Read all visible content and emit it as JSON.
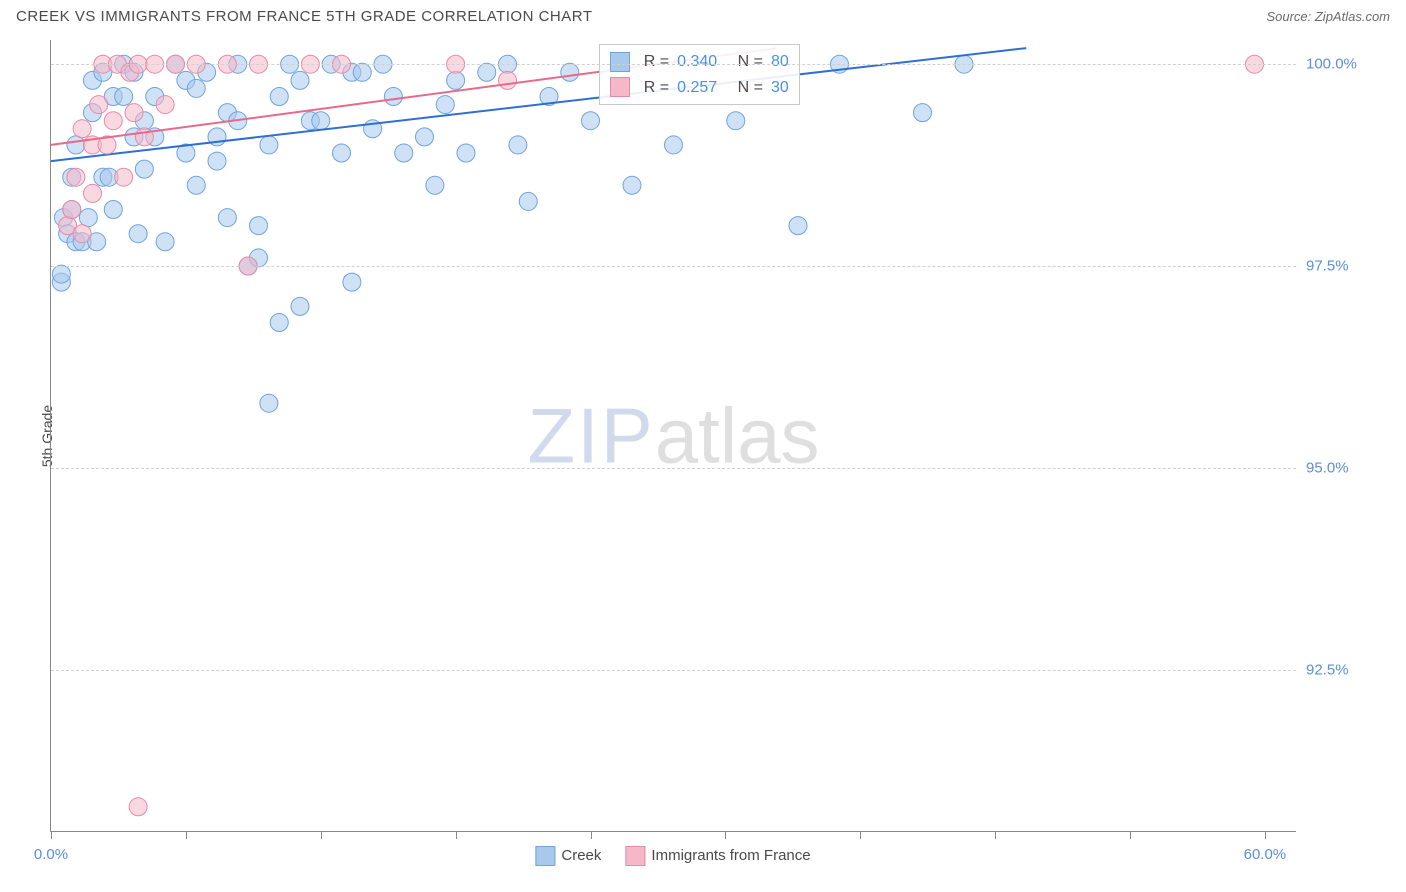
{
  "header": {
    "title": "CREEK VS IMMIGRANTS FROM FRANCE 5TH GRADE CORRELATION CHART",
    "source": "Source: ZipAtlas.com"
  },
  "watermark": {
    "zip": "ZIP",
    "atlas": "atlas"
  },
  "chart": {
    "type": "scatter",
    "ylabel": "5th Grade",
    "xlim": [
      0,
      60
    ],
    "ylim": [
      90.5,
      100.3
    ],
    "xtick_positions": [
      0,
      6.5,
      13,
      19.5,
      26,
      32.5,
      39,
      45.5,
      52,
      58.5
    ],
    "xtick_labels_shown": {
      "first": "0.0%",
      "last": "60.0%"
    },
    "ytick_positions": [
      92.5,
      95.0,
      97.5,
      100.0
    ],
    "ytick_labels": [
      "92.5%",
      "95.0%",
      "97.5%",
      "100.0%"
    ],
    "grid_color": "#d0d0d0",
    "background_color": "#ffffff",
    "series": [
      {
        "name": "Creek",
        "fill": "#a8c8ec",
        "stroke": "#6fa3dd",
        "fill_opacity": 0.55,
        "marker_radius": 9,
        "regression": {
          "x1": 0,
          "y1": 98.8,
          "x2": 47,
          "y2": 100.2,
          "color": "#2e6fd1",
          "width": 2
        },
        "stats": {
          "R": "0.340",
          "N": "80"
        },
        "points": [
          [
            0.5,
            97.3
          ],
          [
            0.5,
            97.4
          ],
          [
            0.6,
            98.1
          ],
          [
            0.8,
            97.9
          ],
          [
            1.0,
            98.2
          ],
          [
            1.0,
            98.6
          ],
          [
            1.2,
            97.8
          ],
          [
            1.2,
            99.0
          ],
          [
            1.5,
            97.8
          ],
          [
            1.8,
            98.1
          ],
          [
            2.0,
            99.4
          ],
          [
            2.0,
            99.8
          ],
          [
            2.2,
            97.8
          ],
          [
            2.5,
            98.6
          ],
          [
            2.5,
            99.9
          ],
          [
            2.8,
            98.6
          ],
          [
            3.0,
            99.6
          ],
          [
            3.0,
            98.2
          ],
          [
            3.5,
            100.0
          ],
          [
            3.5,
            99.6
          ],
          [
            4.0,
            99.1
          ],
          [
            4.0,
            99.9
          ],
          [
            4.2,
            97.9
          ],
          [
            4.5,
            99.3
          ],
          [
            4.5,
            98.7
          ],
          [
            5.0,
            99.1
          ],
          [
            5.0,
            99.6
          ],
          [
            5.5,
            97.8
          ],
          [
            6.0,
            100.0
          ],
          [
            6.5,
            99.8
          ],
          [
            6.5,
            98.9
          ],
          [
            7.0,
            99.7
          ],
          [
            7.0,
            98.5
          ],
          [
            7.5,
            99.9
          ],
          [
            8.0,
            99.1
          ],
          [
            8.0,
            98.8
          ],
          [
            8.5,
            99.4
          ],
          [
            8.5,
            98.1
          ],
          [
            9.0,
            100.0
          ],
          [
            9.0,
            99.3
          ],
          [
            9.5,
            97.5
          ],
          [
            10.0,
            97.6
          ],
          [
            10.0,
            98.0
          ],
          [
            10.5,
            99.0
          ],
          [
            11.0,
            99.6
          ],
          [
            11.0,
            96.8
          ],
          [
            11.5,
            100.0
          ],
          [
            12.0,
            99.8
          ],
          [
            12.0,
            97.0
          ],
          [
            12.5,
            99.3
          ],
          [
            13.0,
            99.3
          ],
          [
            13.5,
            100.0
          ],
          [
            14.0,
            98.9
          ],
          [
            14.5,
            99.9
          ],
          [
            14.5,
            97.3
          ],
          [
            15.0,
            99.9
          ],
          [
            15.5,
            99.2
          ],
          [
            16.0,
            100.0
          ],
          [
            16.5,
            99.6
          ],
          [
            17.0,
            98.9
          ],
          [
            18.0,
            99.1
          ],
          [
            18.5,
            98.5
          ],
          [
            19.0,
            99.5
          ],
          [
            19.5,
            99.8
          ],
          [
            20.0,
            98.9
          ],
          [
            21.0,
            99.9
          ],
          [
            22.0,
            100.0
          ],
          [
            22.5,
            99.0
          ],
          [
            23.0,
            98.3
          ],
          [
            24.0,
            99.6
          ],
          [
            25.0,
            99.9
          ],
          [
            26.0,
            99.3
          ],
          [
            28.0,
            98.5
          ],
          [
            30.0,
            99.0
          ],
          [
            33.0,
            99.3
          ],
          [
            36.0,
            98.0
          ],
          [
            38.0,
            100.0
          ],
          [
            42.0,
            99.4
          ],
          [
            44.0,
            100.0
          ],
          [
            10.5,
            95.8
          ]
        ]
      },
      {
        "name": "Immigrants from France",
        "fill": "#f5b8c8",
        "stroke": "#e88aa5",
        "fill_opacity": 0.55,
        "marker_radius": 9,
        "regression": {
          "x1": 0,
          "y1": 99.0,
          "x2": 35,
          "y2": 100.2,
          "color": "#e86a8a",
          "width": 2
        },
        "stats": {
          "R": "0.257",
          "N": "30"
        },
        "points": [
          [
            0.8,
            98.0
          ],
          [
            1.0,
            98.2
          ],
          [
            1.2,
            98.6
          ],
          [
            1.5,
            97.9
          ],
          [
            1.5,
            99.2
          ],
          [
            2.0,
            99.0
          ],
          [
            2.0,
            98.4
          ],
          [
            2.3,
            99.5
          ],
          [
            2.5,
            100.0
          ],
          [
            2.7,
            99.0
          ],
          [
            3.0,
            99.3
          ],
          [
            3.2,
            100.0
          ],
          [
            3.5,
            98.6
          ],
          [
            3.8,
            99.9
          ],
          [
            4.0,
            99.4
          ],
          [
            4.2,
            100.0
          ],
          [
            4.5,
            99.1
          ],
          [
            4.2,
            90.8
          ],
          [
            5.0,
            100.0
          ],
          [
            5.5,
            99.5
          ],
          [
            6.0,
            100.0
          ],
          [
            7.0,
            100.0
          ],
          [
            8.5,
            100.0
          ],
          [
            9.5,
            97.5
          ],
          [
            10.0,
            100.0
          ],
          [
            12.5,
            100.0
          ],
          [
            14.0,
            100.0
          ],
          [
            19.5,
            100.0
          ],
          [
            22.0,
            99.8
          ],
          [
            58.0,
            100.0
          ]
        ]
      }
    ],
    "legend_bottom": [
      {
        "label": "Creek",
        "fill": "#a8c8ec",
        "stroke": "#6fa3dd"
      },
      {
        "label": "Immigrants from France",
        "fill": "#f5b8c8",
        "stroke": "#e88aa5"
      }
    ],
    "stats_box": {
      "label_R": "R =",
      "label_N": "N ="
    }
  }
}
